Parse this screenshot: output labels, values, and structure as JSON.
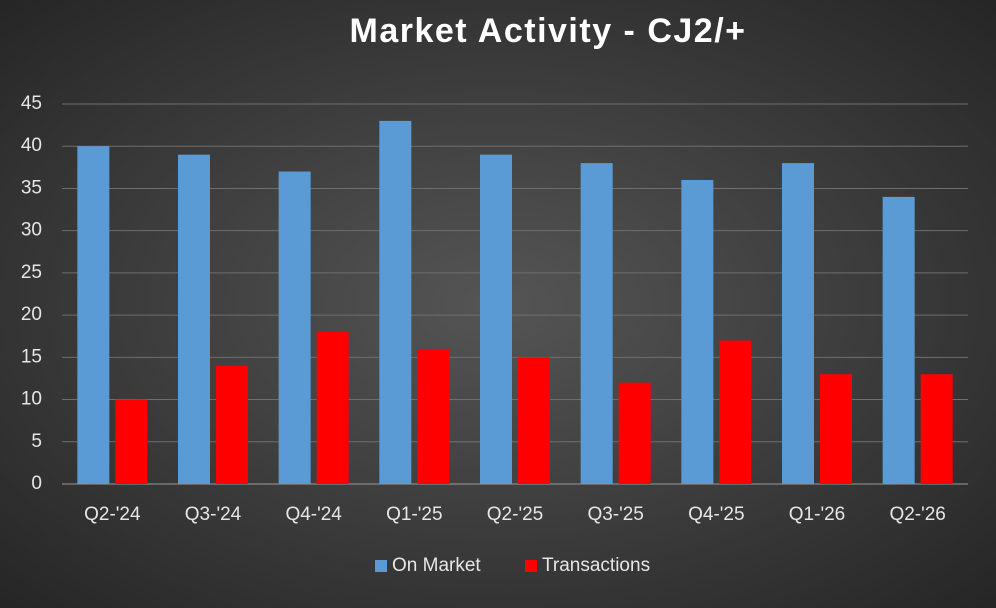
{
  "chart_data": {
    "type": "bar",
    "title": "Market Activity - CJ2/+",
    "categories": [
      "Q2-'24",
      "Q3-'24",
      "Q4-'24",
      "Q1-'25",
      "Q2-'25",
      "Q3-'25",
      "Q4-'25",
      "Q1-'26",
      "Q2-'26"
    ],
    "series": [
      {
        "name": "On Market",
        "color": "#5b9bd5",
        "values": [
          40,
          39,
          37,
          43,
          39,
          38,
          36,
          38,
          34
        ]
      },
      {
        "name": "Transactions",
        "color": "#ff0000",
        "values": [
          10,
          14,
          18,
          16,
          15,
          12,
          17,
          13,
          13
        ]
      }
    ],
    "ylim": [
      0,
      45
    ],
    "yticks": [
      0,
      5,
      10,
      15,
      20,
      25,
      30,
      35,
      40,
      45
    ],
    "grid": true,
    "legend": "bottom"
  }
}
